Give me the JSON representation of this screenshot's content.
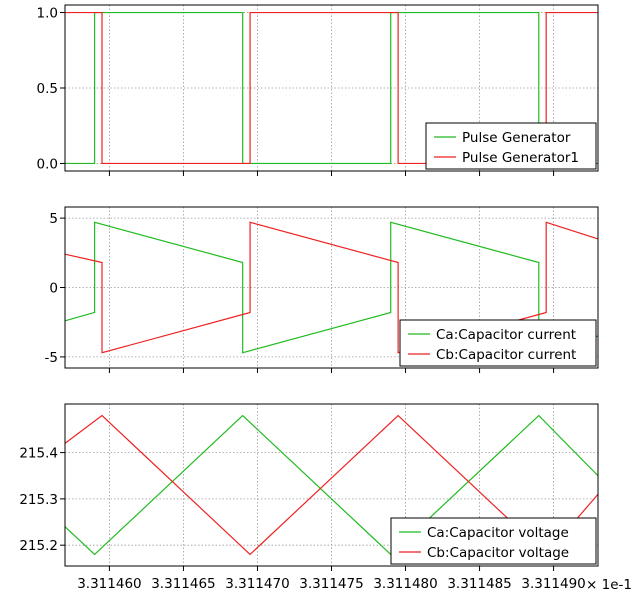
{
  "chart_data": [
    {
      "type": "line",
      "title": "",
      "xlabel": "",
      "ylabel": "",
      "xlim": [
        3.311457,
        3.311493
      ],
      "ylim": [
        -0.05,
        1.05
      ],
      "yticks": [
        0.0,
        0.5,
        1.0
      ],
      "ytick_labels": [
        "0.0",
        "0.5",
        "1.0"
      ],
      "grid": true,
      "legend_position": "bottom-right",
      "series": [
        {
          "name": "Pulse Generator",
          "color": "#22bb22",
          "x": [
            3.311457,
            3.311459,
            3.311459,
            3.311469,
            3.311469,
            3.311479,
            3.311479,
            3.311489,
            3.311489,
            3.311493
          ],
          "y": [
            0,
            0,
            1,
            1,
            0,
            0,
            1,
            1,
            0,
            0
          ]
        },
        {
          "name": "Pulse Generator1",
          "color": "#ee2222",
          "x": [
            3.311457,
            3.3114595,
            3.3114595,
            3.3114695,
            3.3114695,
            3.3114795,
            3.3114795,
            3.3114895,
            3.3114895,
            3.311493
          ],
          "y": [
            1,
            1,
            0,
            0,
            1,
            1,
            0,
            0,
            1,
            1
          ]
        }
      ]
    },
    {
      "type": "line",
      "title": "",
      "xlabel": "",
      "ylabel": "",
      "xlim": [
        3.311457,
        3.311493
      ],
      "ylim": [
        -5.8,
        5.8
      ],
      "yticks": [
        -5,
        0,
        5
      ],
      "ytick_labels": [
        "-5",
        "0",
        "5"
      ],
      "grid": true,
      "legend_position": "bottom-right",
      "series": [
        {
          "name": "Ca:Capacitor current",
          "color": "#22bb22",
          "x": [
            3.311457,
            3.311459,
            3.311459,
            3.311469,
            3.311469,
            3.311479,
            3.311479,
            3.311489,
            3.311489,
            3.311493
          ],
          "y": [
            -2.4,
            -1.8,
            4.7,
            1.8,
            -4.7,
            -1.8,
            4.7,
            1.8,
            -4.7,
            -3.5
          ]
        },
        {
          "name": "Cb:Capacitor current",
          "color": "#ee2222",
          "x": [
            3.311457,
            3.3114595,
            3.3114595,
            3.3114695,
            3.3114695,
            3.3114795,
            3.3114795,
            3.3114895,
            3.3114895,
            3.311493
          ],
          "y": [
            2.4,
            1.8,
            -4.7,
            -1.8,
            4.7,
            1.8,
            -4.7,
            -1.8,
            4.7,
            3.5
          ]
        }
      ]
    },
    {
      "type": "line",
      "title": "",
      "xlabel": "",
      "ylabel": "",
      "xlim": [
        3.311457,
        3.311493
      ],
      "ylim": [
        215.155,
        215.505
      ],
      "yticks": [
        215.2,
        215.3,
        215.4
      ],
      "ytick_labels": [
        "215.2",
        "215.3",
        "215.4"
      ],
      "xticks": [
        3.31146,
        3.311465,
        3.31147,
        3.311475,
        3.31148,
        3.311485,
        3.31149
      ],
      "xtick_labels": [
        "3.311460",
        "3.311465",
        "3.311470",
        "3.311475",
        "3.311480",
        "3.311485",
        "3.311490"
      ],
      "x_multiplier_label": "× 1e-1",
      "grid": true,
      "legend_position": "bottom-right",
      "series": [
        {
          "name": "Ca:Capacitor voltage",
          "color": "#22bb22",
          "x": [
            3.311457,
            3.311459,
            3.311469,
            3.311479,
            3.311489,
            3.311493
          ],
          "y": [
            215.24,
            215.18,
            215.48,
            215.18,
            215.48,
            215.35
          ]
        },
        {
          "name": "Cb:Capacitor voltage",
          "color": "#ee2222",
          "x": [
            3.311457,
            3.3114595,
            3.3114695,
            3.3114795,
            3.3114895,
            3.311493
          ],
          "y": [
            215.42,
            215.48,
            215.18,
            215.48,
            215.18,
            215.31
          ]
        }
      ]
    }
  ]
}
